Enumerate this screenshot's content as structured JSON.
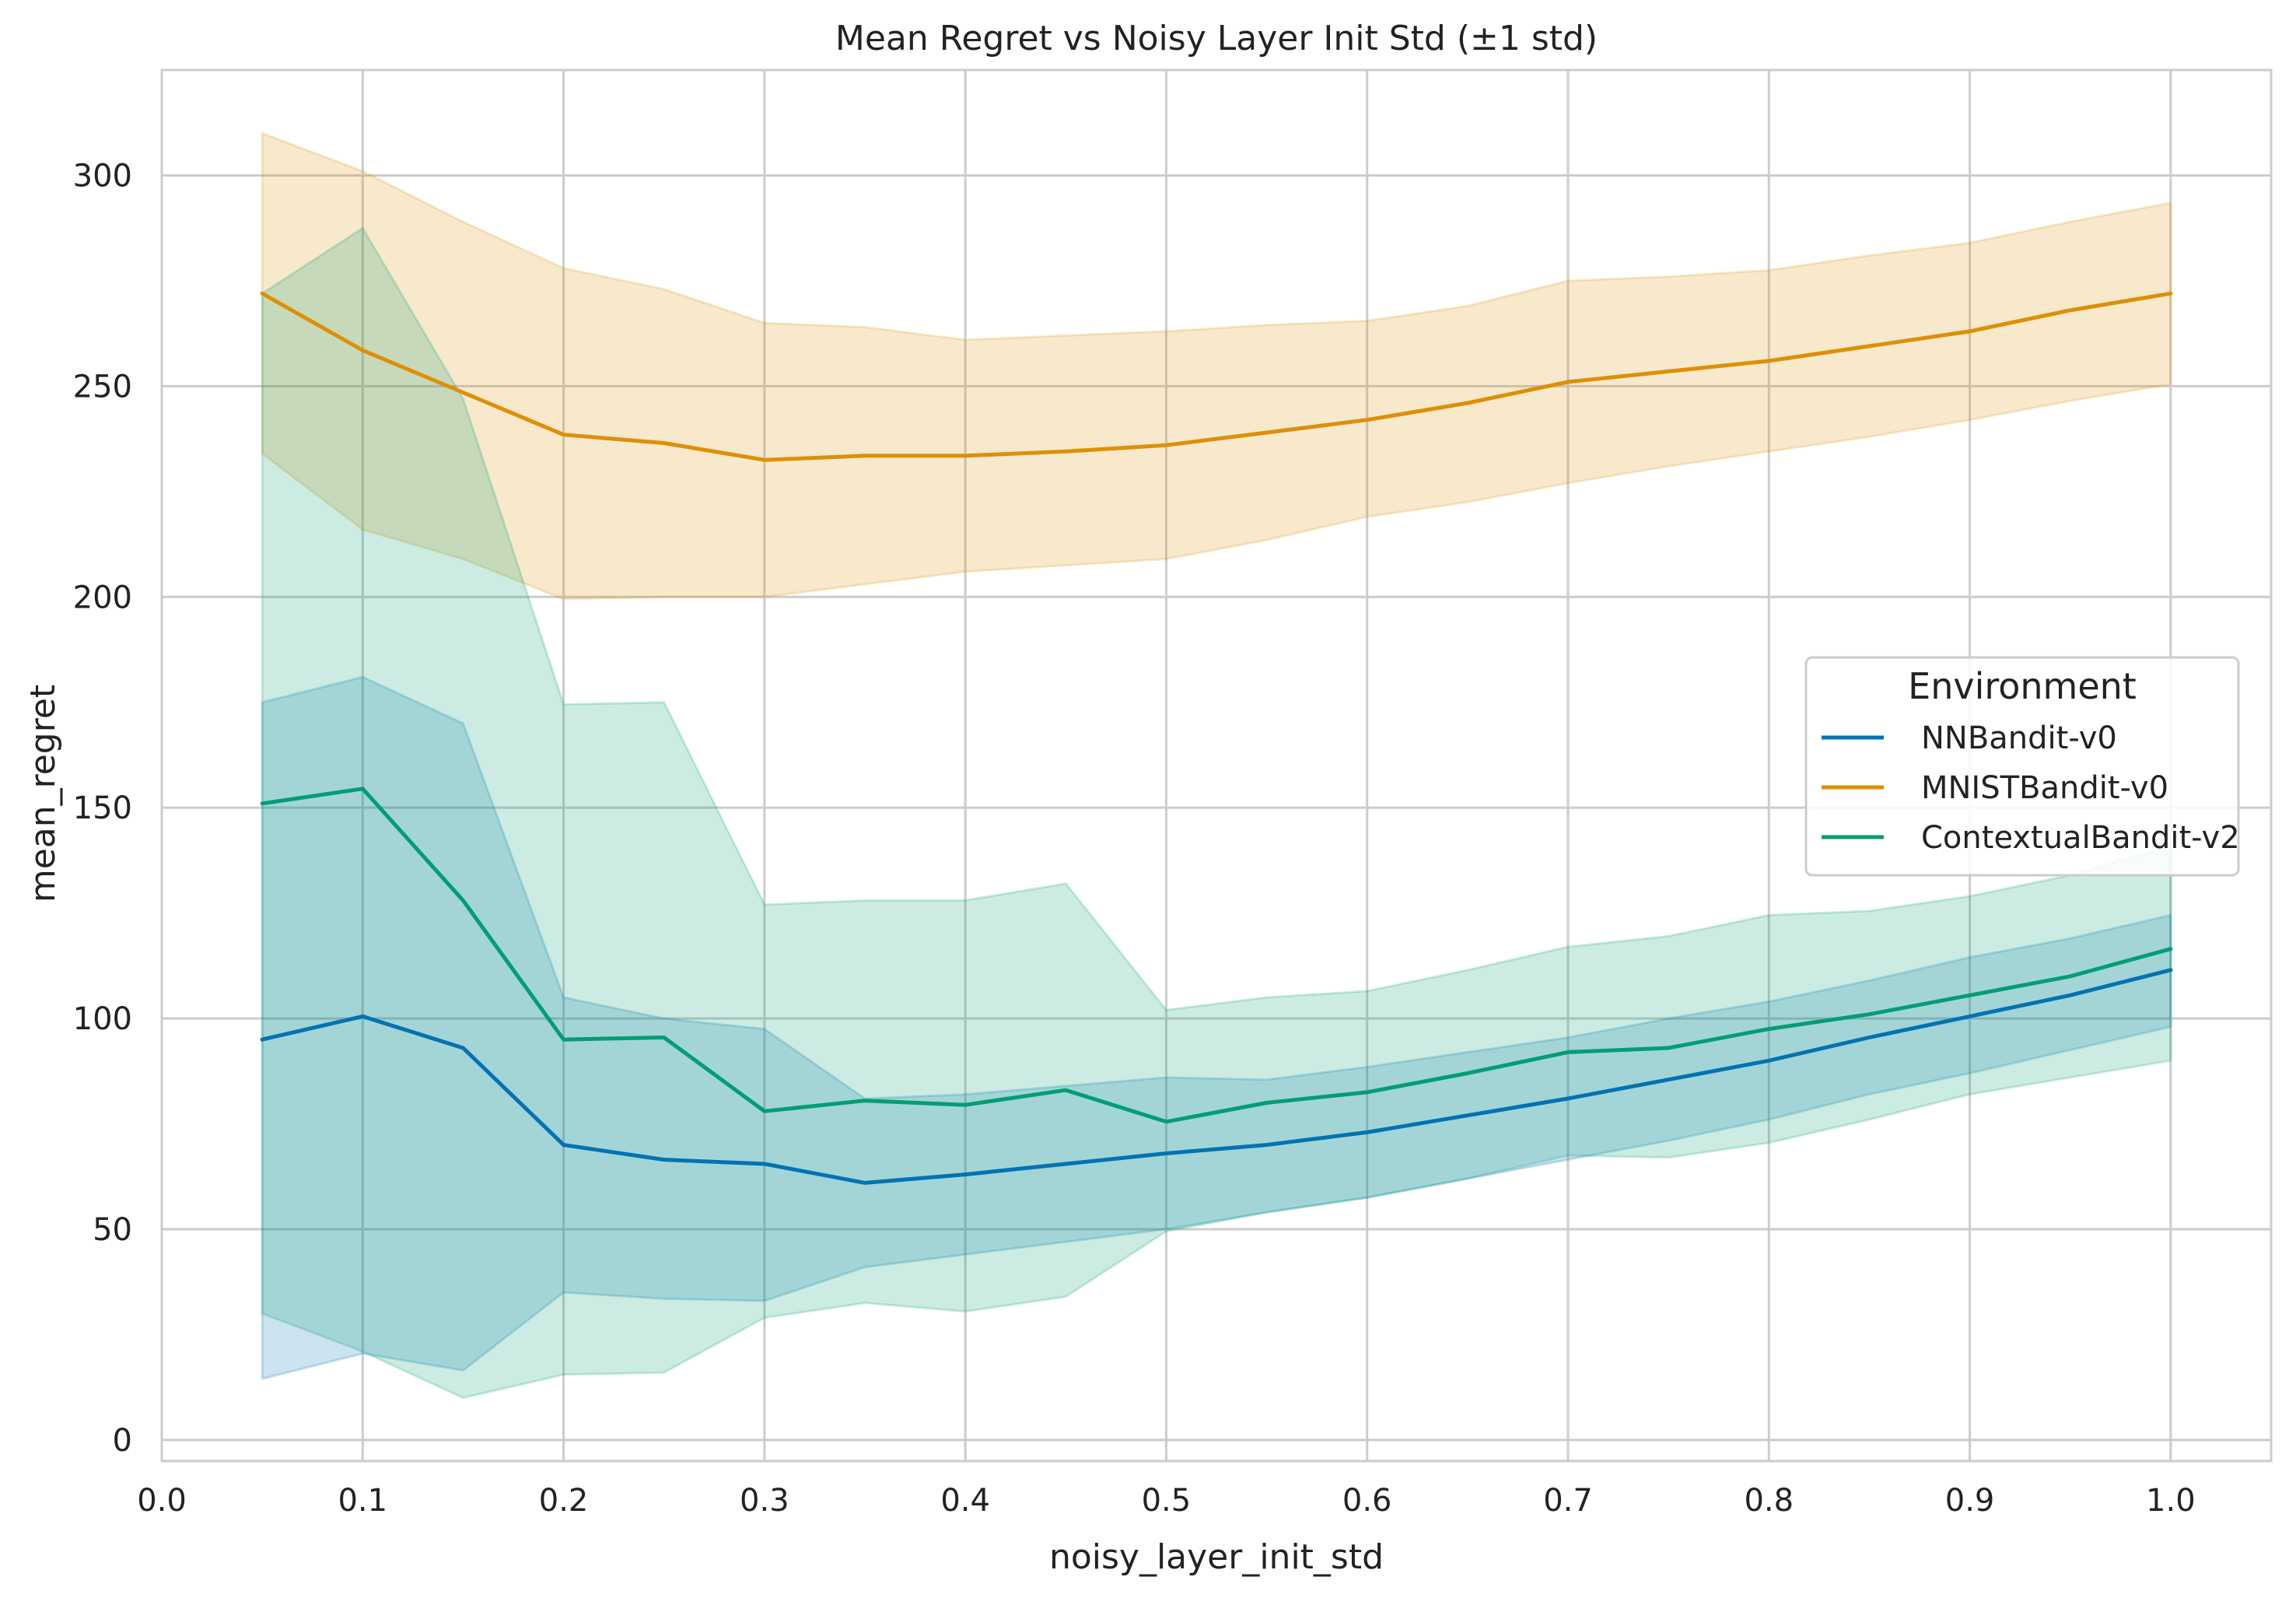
{
  "chart_data": {
    "type": "line",
    "title": "Mean Regret vs Noisy Layer Init Std (±1 std)",
    "xlabel": "noisy_layer_init_std",
    "ylabel": "mean_regret",
    "xlim": [
      0.0,
      1.05
    ],
    "ylim": [
      -5,
      325
    ],
    "xticks": [
      0.0,
      0.1,
      0.2,
      0.3,
      0.4,
      0.5,
      0.6,
      0.7,
      0.8,
      0.9,
      1.0
    ],
    "xtick_labels": [
      "0.0",
      "0.1",
      "0.2",
      "0.3",
      "0.4",
      "0.5",
      "0.6",
      "0.7",
      "0.8",
      "0.9",
      "1.0"
    ],
    "yticks": [
      0,
      50,
      100,
      150,
      200,
      250,
      300
    ],
    "ytick_labels": [
      "0",
      "50",
      "100",
      "150",
      "200",
      "250",
      "300"
    ],
    "grid": true,
    "legend": {
      "title": "Environment",
      "placement": "center-right"
    },
    "x": [
      0.05,
      0.1,
      0.15,
      0.2,
      0.25,
      0.3,
      0.35,
      0.4,
      0.45,
      0.5,
      0.55,
      0.6,
      0.65,
      0.7,
      0.75,
      0.8,
      0.85,
      0.9,
      0.95,
      1.0
    ],
    "series": [
      {
        "name": "NNBandit-v0",
        "color": "#0173b2",
        "values": [
          95,
          100.5,
          93,
          70,
          66.5,
          65.5,
          61,
          63,
          65.5,
          68,
          70,
          73,
          77,
          81,
          85.5,
          90,
          95.5,
          100.5,
          105.5,
          111.5
        ],
        "lower": [
          14.5,
          20.5,
          16.5,
          35,
          33.5,
          33,
          41,
          44,
          47,
          50,
          54,
          57.5,
          62,
          66.5,
          71,
          76,
          82,
          87,
          92.5,
          98
        ],
        "upper": [
          175,
          181,
          170,
          105,
          100,
          97.5,
          81,
          82,
          84,
          86,
          85.5,
          88.5,
          92,
          95.5,
          100,
          104,
          109,
          114.5,
          119,
          124.5
        ]
      },
      {
        "name": "MNISTBandit-v0",
        "color": "#de8f05",
        "values": [
          272,
          258.5,
          248.5,
          238.5,
          236.5,
          232.5,
          233.5,
          233.5,
          234.5,
          236,
          239,
          242,
          246,
          251,
          253.5,
          256,
          259.5,
          263,
          268,
          272
        ],
        "lower": [
          234,
          216,
          209,
          199.5,
          200,
          200,
          203,
          206,
          207.5,
          209,
          213.5,
          219,
          222.5,
          227,
          231,
          234.5,
          238,
          242,
          246.5,
          250.5
        ],
        "upper": [
          310,
          301,
          289,
          278,
          273,
          265,
          264,
          261,
          262,
          263,
          264.5,
          265.5,
          269,
          275,
          276,
          277.5,
          281,
          284,
          289,
          293.5
        ]
      },
      {
        "name": "ContextualBandit-v2",
        "color": "#029e73",
        "values": [
          151,
          154.5,
          128,
          95,
          95.5,
          78,
          80.5,
          79.5,
          83,
          75.5,
          80,
          82.5,
          87,
          92,
          93,
          97.5,
          101,
          105.5,
          110,
          116.5
        ],
        "lower": [
          30,
          21,
          10,
          15.5,
          16,
          29,
          32.5,
          30.5,
          34,
          49.5,
          54,
          57.5,
          62,
          67.5,
          67,
          70.5,
          76,
          82,
          86,
          90
        ],
        "upper": [
          272,
          287.5,
          247,
          174.5,
          175,
          127,
          128,
          128,
          132,
          102,
          105,
          106.5,
          111.5,
          117,
          119.5,
          124.5,
          125.5,
          129,
          134,
          141
        ]
      }
    ]
  }
}
